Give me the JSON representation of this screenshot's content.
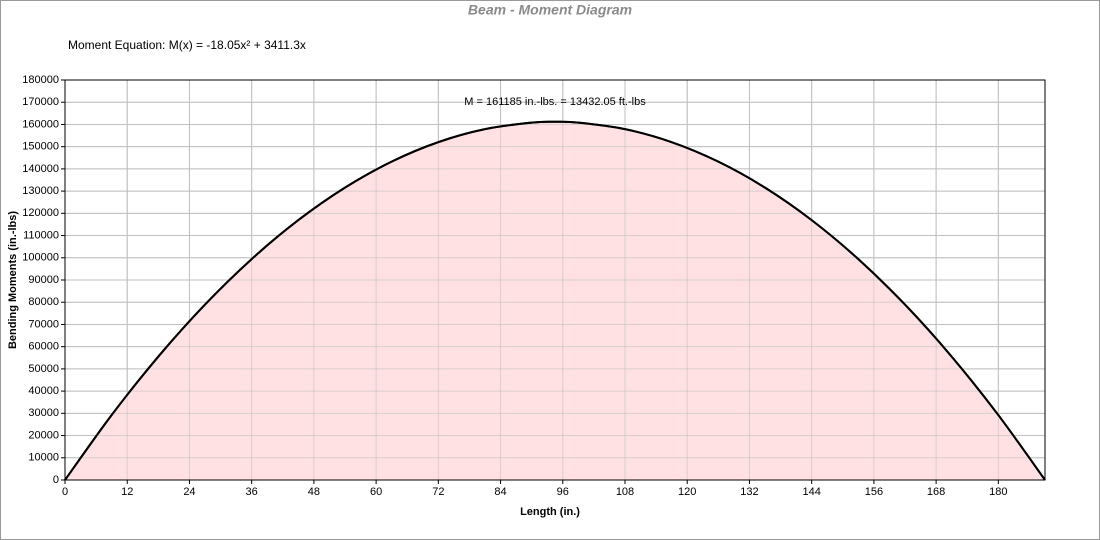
{
  "chart_data": {
    "type": "area",
    "title": "Beam - Moment Diagram",
    "equation": "Moment Equation:  M(x) = -18.05x² + 3411.3x",
    "annotation": "M = 161185 in.-lbs. = 13432.05 ft.-lbs",
    "x_label": "Length (in.)",
    "y_label": "Bending Moments (in.-lbs)",
    "x": [
      0,
      9,
      18,
      27,
      36,
      45,
      54,
      63,
      72,
      81,
      90,
      94.5,
      99,
      108,
      117,
      126,
      135,
      144,
      153,
      162,
      171,
      180,
      189
    ],
    "series": [
      {
        "color": "#000000",
        "fill": "#ffe1e3",
        "values": [
          0,
          29240,
          55555,
          78947,
          99414,
          116957,
          131576,
          143271,
          152042,
          157889,
          160812,
          161185,
          160811,
          157885,
          152036,
          143262,
          131564,
          116942,
          99396,
          78926,
          55532,
          29214,
          0
        ]
      }
    ],
    "xlim": [
      0,
      189
    ],
    "ylim": [
      0,
      180000
    ],
    "xticks": [
      0,
      12,
      24,
      36,
      48,
      60,
      72,
      84,
      96,
      108,
      120,
      132,
      144,
      156,
      168,
      180
    ],
    "yticks": [
      0,
      10000,
      20000,
      30000,
      40000,
      50000,
      60000,
      70000,
      80000,
      90000,
      100000,
      110000,
      120000,
      130000,
      140000,
      150000,
      160000,
      170000,
      180000
    ],
    "grid": true
  }
}
